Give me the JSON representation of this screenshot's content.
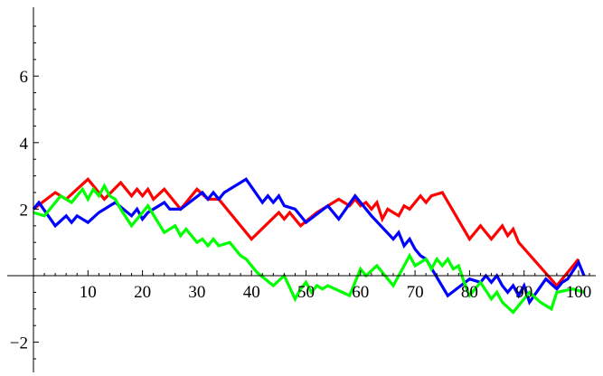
{
  "chart_data": {
    "type": "line",
    "title": "",
    "xlabel": "",
    "ylabel": "",
    "xlim": [
      0,
      103
    ],
    "ylim": [
      -3,
      8.5
    ],
    "xticks": {
      "major": [
        10,
        20,
        30,
        40,
        50,
        60,
        70,
        80,
        90,
        100
      ],
      "labels": [
        "10",
        "20",
        "30",
        "40",
        "50",
        "60",
        "70",
        "80",
        "90",
        "100"
      ]
    },
    "yticks": {
      "major": [
        -2,
        2,
        4,
        6
      ],
      "labels": [
        "−2",
        "2",
        "4",
        "6"
      ]
    },
    "grid": false,
    "legend": "none",
    "series": [
      {
        "color": "#ff0000",
        "x": [
          0,
          4,
          6,
          8,
          10,
          13,
          16,
          18,
          19,
          20,
          21,
          22,
          24,
          27,
          30,
          32,
          34,
          40,
          45,
          46,
          47,
          49,
          52,
          56,
          58,
          59,
          60,
          61,
          62,
          63,
          64,
          65,
          66,
          67,
          68,
          69,
          70,
          71,
          72,
          73,
          75,
          80,
          82,
          84,
          86,
          87,
          88,
          89,
          96,
          100
        ],
        "y": [
          2.0,
          2.5,
          2.3,
          2.6,
          2.9,
          2.3,
          2.8,
          2.4,
          2.6,
          2.4,
          2.6,
          2.3,
          2.6,
          2.0,
          2.6,
          2.3,
          2.3,
          1.1,
          1.9,
          1.7,
          1.9,
          1.5,
          1.9,
          2.3,
          2.1,
          2.3,
          2.1,
          2.2,
          2.0,
          2.2,
          1.7,
          2.0,
          1.9,
          1.8,
          2.1,
          2.0,
          2.2,
          2.4,
          2.2,
          2.4,
          2.5,
          1.1,
          1.5,
          1.1,
          1.5,
          1.2,
          1.4,
          1.0,
          -0.3,
          0.5
        ]
      },
      {
        "color": "#0000ff",
        "x": [
          0,
          1,
          4,
          6,
          7,
          8,
          10,
          12,
          15,
          18,
          19,
          20,
          21,
          23,
          24,
          25,
          27,
          31,
          32,
          33,
          34,
          35,
          39,
          42,
          43,
          44,
          45,
          46,
          48,
          50,
          54,
          56,
          59,
          62,
          66,
          67,
          68,
          69,
          70,
          71,
          72,
          76,
          80,
          82,
          83,
          84,
          85,
          86,
          87,
          88,
          89,
          90,
          91,
          94,
          96,
          97,
          98,
          100,
          101
        ],
        "y": [
          2.0,
          2.2,
          1.5,
          1.8,
          1.6,
          1.8,
          1.6,
          1.9,
          2.2,
          1.8,
          2.0,
          1.7,
          1.9,
          2.1,
          2.2,
          2.0,
          2.0,
          2.5,
          2.3,
          2.5,
          2.3,
          2.5,
          2.9,
          2.2,
          2.4,
          2.2,
          2.4,
          2.1,
          2.0,
          1.6,
          2.1,
          1.7,
          2.4,
          1.8,
          1.1,
          1.3,
          0.9,
          1.1,
          0.8,
          0.6,
          0.5,
          -0.6,
          -0.1,
          -0.2,
          0.0,
          -0.2,
          0.0,
          -0.3,
          -0.5,
          -0.3,
          -0.6,
          -0.3,
          -0.8,
          -0.1,
          -0.4,
          -0.2,
          -0.1,
          0.4,
          0.0
        ]
      },
      {
        "color": "#00ff00",
        "x": [
          0,
          2,
          5,
          7,
          9,
          10,
          11,
          12,
          13,
          14,
          15,
          16,
          18,
          20,
          21,
          24,
          26,
          27,
          28,
          30,
          31,
          32,
          33,
          34,
          36,
          38,
          39,
          41,
          44,
          46,
          48,
          49,
          50,
          51,
          52,
          53,
          54,
          58,
          60,
          61,
          63,
          66,
          69,
          70,
          72,
          73,
          74,
          75,
          76,
          77,
          78,
          79,
          80,
          82,
          84,
          85,
          86,
          88,
          91,
          93,
          94,
          95,
          96,
          99,
          101
        ],
        "y": [
          1.9,
          1.8,
          2.4,
          2.2,
          2.6,
          2.3,
          2.6,
          2.4,
          2.7,
          2.4,
          2.3,
          2.0,
          1.5,
          1.9,
          2.1,
          1.3,
          1.5,
          1.2,
          1.4,
          1.0,
          1.1,
          0.9,
          1.1,
          0.9,
          1.0,
          0.6,
          0.5,
          0.1,
          -0.3,
          0.0,
          -0.7,
          -0.4,
          -0.2,
          -0.5,
          -0.3,
          -0.4,
          -0.3,
          -0.6,
          0.2,
          0.0,
          0.3,
          -0.3,
          0.6,
          0.3,
          0.5,
          0.2,
          0.5,
          0.3,
          0.5,
          0.2,
          0.3,
          -0.2,
          -0.6,
          -0.2,
          -0.7,
          -0.5,
          -0.8,
          -1.1,
          -0.5,
          -0.8,
          -0.9,
          -1.0,
          -0.5,
          -0.4,
          -0.5
        ]
      }
    ]
  }
}
